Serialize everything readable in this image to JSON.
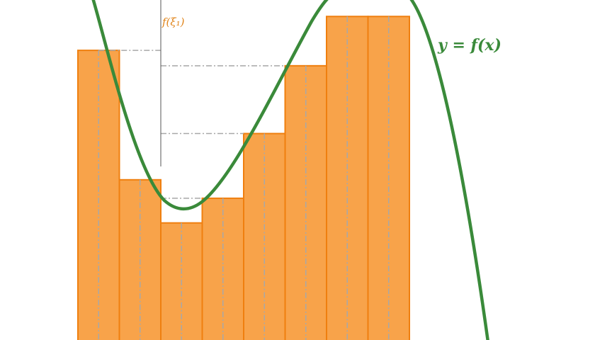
{
  "diagram": {
    "curve_label": "y = f(x)",
    "xi_label": "f(ξ₁)",
    "colors": {
      "bar_fill": "#f8a34a",
      "bar_stroke": "#ef7f0f",
      "curve": "#3a8a3a",
      "guide": "#a8a8a8",
      "axis": "#555555",
      "xi_label": "#e0841a"
    },
    "bars": [
      {
        "height": 0.94
      },
      {
        "height": 0.52
      },
      {
        "height": 0.38
      },
      {
        "height": 0.46
      },
      {
        "height": 0.67
      },
      {
        "height": 0.89
      },
      {
        "height": 1.05
      },
      {
        "height": 1.05
      }
    ]
  }
}
